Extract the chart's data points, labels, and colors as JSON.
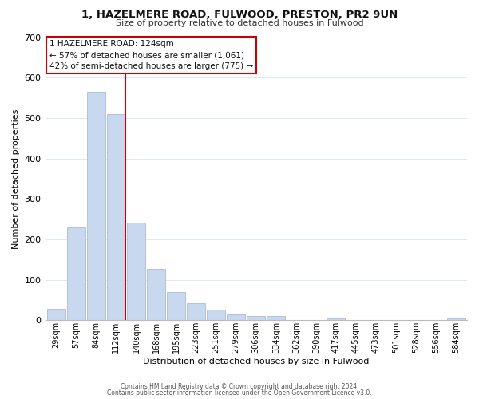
{
  "title": "1, HAZELMERE ROAD, FULWOOD, PRESTON, PR2 9UN",
  "subtitle": "Size of property relative to detached houses in Fulwood",
  "xlabel": "Distribution of detached houses by size in Fulwood",
  "ylabel": "Number of detached properties",
  "bar_color": "#c8d8ee",
  "bar_edge_color": "#aabbdd",
  "bin_labels": [
    "29sqm",
    "57sqm",
    "84sqm",
    "112sqm",
    "140sqm",
    "168sqm",
    "195sqm",
    "223sqm",
    "251sqm",
    "279sqm",
    "306sqm",
    "334sqm",
    "362sqm",
    "390sqm",
    "417sqm",
    "445sqm",
    "473sqm",
    "501sqm",
    "528sqm",
    "556sqm",
    "584sqm"
  ],
  "bar_heights": [
    28,
    230,
    565,
    510,
    242,
    127,
    70,
    42,
    26,
    14,
    10,
    10,
    1,
    0,
    4,
    0,
    0,
    0,
    0,
    0,
    5
  ],
  "ylim": [
    0,
    700
  ],
  "yticks": [
    0,
    100,
    200,
    300,
    400,
    500,
    600,
    700
  ],
  "vline_color": "#cc0000",
  "annotation_line1": "1 HAZELMERE ROAD: 124sqm",
  "annotation_line2": "← 57% of detached houses are smaller (1,061)",
  "annotation_line3": "42% of semi-detached houses are larger (775) →",
  "annotation_box_color": "#cc0000",
  "footer_line1": "Contains HM Land Registry data © Crown copyright and database right 2024.",
  "footer_line2": "Contains public sector information licensed under the Open Government Licence v3.0.",
  "bg_color": "#ffffff",
  "grid_color": "#dde8f0"
}
